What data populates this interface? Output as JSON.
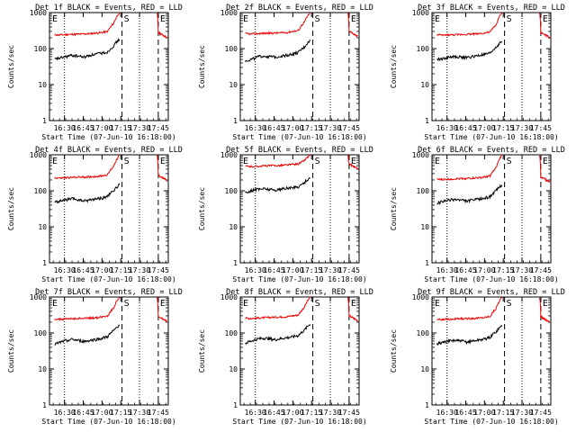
{
  "chart_data": [
    {
      "type": "line",
      "title": "Det 1f BLACK = Events, RED = LLD",
      "ylabel": "Counts/sec",
      "xlabel": "Start Time (07-Jun-10 16:18:00)",
      "xticks": [
        "16:30",
        "16:45",
        "17:00",
        "17:15",
        "17:30",
        "17:45"
      ],
      "yscale": "log",
      "ylim": [
        1,
        1000
      ],
      "yticks": [
        "1",
        "10",
        "100",
        "1000"
      ],
      "markers": [
        "E",
        "S",
        "E"
      ],
      "series": [
        {
          "color": "red",
          "values": [
            240,
            240,
            245,
            250,
            250,
            255,
            260,
            270,
            280,
            300,
            500,
            1000
          ]
        },
        {
          "color": "black",
          "values": [
            50,
            55,
            60,
            65,
            62,
            58,
            65,
            70,
            75,
            80,
            120,
            180
          ]
        }
      ]
    },
    {
      "type": "line",
      "title": "Det 2f BLACK = Events, RED = LLD",
      "ylabel": "Counts/sec",
      "xlabel": "Start Time (07-Jun-10 16:18:00)",
      "xticks": [
        "16:30",
        "16:45",
        "17:00",
        "17:15",
        "17:30",
        "17:45"
      ],
      "yscale": "log",
      "ylim": [
        1,
        1000
      ],
      "yticks": [
        "1",
        "10",
        "100",
        "1000"
      ],
      "markers": [
        "E",
        "S",
        "E"
      ],
      "series": [
        {
          "color": "red",
          "values": [
            260,
            255,
            260,
            265,
            270,
            270,
            275,
            280,
            300,
            320,
            550,
            1000
          ]
        },
        {
          "color": "black",
          "values": [
            45,
            50,
            58,
            62,
            60,
            58,
            62,
            66,
            70,
            78,
            110,
            170
          ]
        }
      ]
    },
    {
      "type": "line",
      "title": "Det 3f BLACK = Events, RED = LLD",
      "ylabel": "Counts/sec",
      "xlabel": "Start Time (07-Jun-10 16:18:00)",
      "xticks": [
        "16:30",
        "16:45",
        "17:00",
        "17:15",
        "17:30",
        "17:45"
      ],
      "yscale": "log",
      "ylim": [
        1,
        1000
      ],
      "yticks": [
        "1",
        "10",
        "100",
        "1000"
      ],
      "markers": [
        "E",
        "S",
        "E"
      ],
      "series": [
        {
          "color": "red",
          "values": [
            240,
            235,
            240,
            240,
            245,
            250,
            255,
            260,
            270,
            290,
            450,
            1000
          ]
        },
        {
          "color": "black",
          "values": [
            50,
            52,
            58,
            60,
            58,
            56,
            60,
            64,
            68,
            74,
            110,
            160
          ]
        }
      ]
    },
    {
      "type": "line",
      "title": "Det 4f BLACK = Events, RED = LLD",
      "ylabel": "Counts/sec",
      "xlabel": "Start Time (07-Jun-10 16:18:00)",
      "xticks": [
        "16:30",
        "16:45",
        "17:00",
        "17:15",
        "17:30",
        "17:45"
      ],
      "yscale": "log",
      "ylim": [
        1,
        1000
      ],
      "yticks": [
        "1",
        "10",
        "100",
        "1000"
      ],
      "markers": [
        "E",
        "S",
        "E"
      ],
      "series": [
        {
          "color": "red",
          "values": [
            230,
            225,
            230,
            235,
            240,
            240,
            245,
            250,
            260,
            280,
            480,
            1000
          ]
        },
        {
          "color": "black",
          "values": [
            48,
            52,
            56,
            60,
            56,
            52,
            56,
            60,
            62,
            70,
            100,
            150
          ]
        }
      ]
    },
    {
      "type": "line",
      "title": "Det 5f BLACK = Events, RED = LLD",
      "ylabel": "Counts/sec",
      "xlabel": "Start Time (07-Jun-10 16:18:00)",
      "xticks": [
        "16:30",
        "16:45",
        "17:00",
        "17:15",
        "17:30",
        "17:45"
      ],
      "yscale": "log",
      "ylim": [
        1,
        1000
      ],
      "yticks": [
        "1",
        "10",
        "100",
        "1000"
      ],
      "markers": [
        "E",
        "S",
        "E"
      ],
      "series": [
        {
          "color": "red",
          "values": [
            480,
            470,
            480,
            490,
            500,
            500,
            510,
            520,
            540,
            560,
            700,
            1000
          ]
        },
        {
          "color": "black",
          "values": [
            90,
            100,
            110,
            115,
            110,
            105,
            110,
            118,
            122,
            130,
            170,
            230
          ]
        }
      ]
    },
    {
      "type": "line",
      "title": "Det 6f BLACK = Events, RED = LLD",
      "ylabel": "Counts/sec",
      "xlabel": "Start Time (07-Jun-10 16:18:00)",
      "xticks": [
        "16:30",
        "16:45",
        "17:00",
        "17:15",
        "17:30",
        "17:45"
      ],
      "yscale": "log",
      "ylim": [
        1,
        1000
      ],
      "yticks": [
        "1",
        "10",
        "100",
        "1000"
      ],
      "markers": [
        "E",
        "S",
        "E"
      ],
      "series": [
        {
          "color": "red",
          "values": [
            210,
            205,
            210,
            215,
            220,
            220,
            225,
            230,
            240,
            260,
            430,
            1000
          ]
        },
        {
          "color": "black",
          "values": [
            45,
            50,
            55,
            58,
            55,
            52,
            55,
            58,
            62,
            70,
            100,
            150
          ]
        }
      ]
    },
    {
      "type": "line",
      "title": "Det 7f BLACK = Events, RED = LLD",
      "ylabel": "Counts/sec",
      "xlabel": "Start Time (07-Jun-10 16:18:00)",
      "xticks": [
        "16:30",
        "16:45",
        "17:00",
        "17:15",
        "17:30",
        "17:45"
      ],
      "yscale": "log",
      "ylim": [
        1,
        1000
      ],
      "yticks": [
        "1",
        "10",
        "100",
        "1000"
      ],
      "markers": [
        "E",
        "S",
        "E"
      ],
      "series": [
        {
          "color": "red",
          "values": [
            245,
            240,
            245,
            250,
            255,
            255,
            260,
            265,
            280,
            300,
            500,
            1000
          ]
        },
        {
          "color": "black",
          "values": [
            48,
            55,
            62,
            66,
            62,
            58,
            62,
            66,
            70,
            80,
            115,
            170
          ]
        }
      ]
    },
    {
      "type": "line",
      "title": "Det 8f BLACK = Events, RED = LLD",
      "ylabel": "Counts/sec",
      "xlabel": "Start Time (07-Jun-10 16:18:00)",
      "xticks": [
        "16:30",
        "16:45",
        "17:00",
        "17:15",
        "17:30",
        "17:45"
      ],
      "yscale": "log",
      "ylim": [
        1,
        1000
      ],
      "yticks": [
        "1",
        "10",
        "100",
        "1000"
      ],
      "markers": [
        "E",
        "S",
        "E"
      ],
      "series": [
        {
          "color": "red",
          "values": [
            260,
            255,
            260,
            265,
            270,
            275,
            280,
            285,
            300,
            320,
            520,
            1000
          ]
        },
        {
          "color": "black",
          "values": [
            52,
            60,
            68,
            72,
            70,
            65,
            70,
            74,
            78,
            86,
            120,
            180
          ]
        }
      ]
    },
    {
      "type": "line",
      "title": "Det 9f BLACK = Events, RED = LLD",
      "ylabel": "Counts/sec",
      "xlabel": "Start Time (07-Jun-10 16:18:00)",
      "xticks": [
        "16:30",
        "16:45",
        "17:00",
        "17:15",
        "17:30",
        "17:45"
      ],
      "yscale": "log",
      "ylim": [
        1,
        1000
      ],
      "yticks": [
        "1",
        "10",
        "100",
        "1000"
      ],
      "markers": [
        "E",
        "S",
        "E"
      ],
      "series": [
        {
          "color": "red",
          "values": [
            240,
            235,
            240,
            245,
            250,
            250,
            255,
            260,
            270,
            290,
            480,
            1000
          ]
        },
        {
          "color": "black",
          "values": [
            50,
            55,
            60,
            62,
            60,
            56,
            60,
            64,
            68,
            76,
            110,
            160
          ]
        }
      ]
    }
  ]
}
